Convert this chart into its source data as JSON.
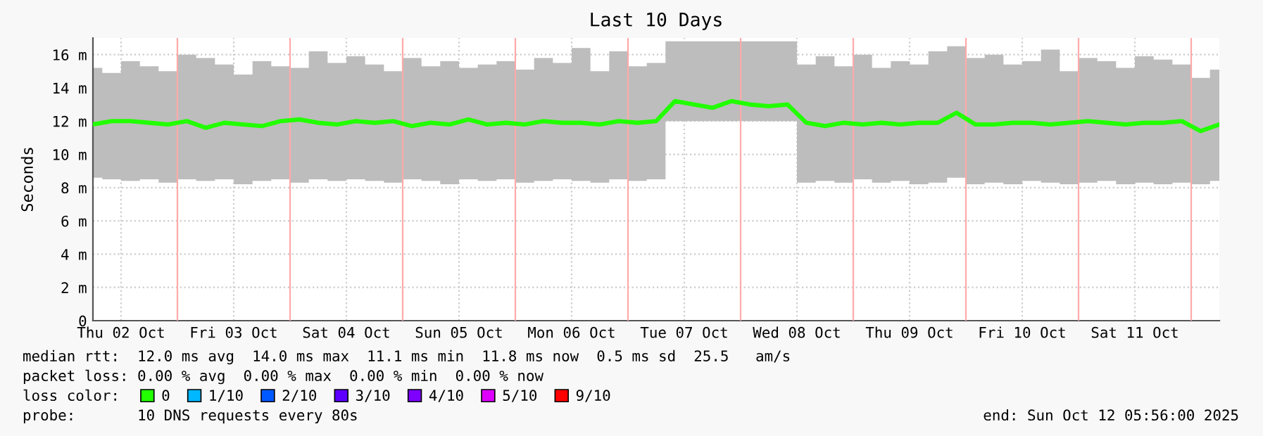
{
  "chart_data": {
    "type": "line",
    "title": "Last 10 Days",
    "ylabel": "Seconds",
    "x": [
      "2025-10-02T06:00",
      "2025-10-02T10:00",
      "2025-10-02T14:00",
      "2025-10-02T18:00",
      "2025-10-02T22:00",
      "2025-10-03T02:00",
      "2025-10-03T06:00",
      "2025-10-03T10:00",
      "2025-10-03T14:00",
      "2025-10-03T18:00",
      "2025-10-03T22:00",
      "2025-10-04T02:00",
      "2025-10-04T06:00",
      "2025-10-04T10:00",
      "2025-10-04T14:00",
      "2025-10-04T18:00",
      "2025-10-04T22:00",
      "2025-10-05T02:00",
      "2025-10-05T06:00",
      "2025-10-05T10:00",
      "2025-10-05T14:00",
      "2025-10-05T18:00",
      "2025-10-05T22:00",
      "2025-10-06T02:00",
      "2025-10-06T06:00",
      "2025-10-06T10:00",
      "2025-10-06T14:00",
      "2025-10-06T18:00",
      "2025-10-06T22:00",
      "2025-10-07T02:00",
      "2025-10-07T06:00",
      "2025-10-07T10:00",
      "2025-10-07T14:00",
      "2025-10-07T18:00",
      "2025-10-07T22:00",
      "2025-10-08T02:00",
      "2025-10-08T06:00",
      "2025-10-08T10:00",
      "2025-10-08T14:00",
      "2025-10-08T18:00",
      "2025-10-08T22:00",
      "2025-10-09T02:00",
      "2025-10-09T06:00",
      "2025-10-09T10:00",
      "2025-10-09T14:00",
      "2025-10-09T18:00",
      "2025-10-09T22:00",
      "2025-10-10T02:00",
      "2025-10-10T06:00",
      "2025-10-10T10:00",
      "2025-10-10T14:00",
      "2025-10-10T18:00",
      "2025-10-10T22:00",
      "2025-10-11T02:00",
      "2025-10-11T06:00",
      "2025-10-11T10:00",
      "2025-10-11T14:00",
      "2025-10-11T18:00",
      "2025-10-11T22:00",
      "2025-10-12T02:00",
      "2025-10-12T06:00"
    ],
    "series": [
      {
        "name": "0",
        "color": "#22ff00",
        "values": [
          11.8,
          12.0,
          12.0,
          11.9,
          11.8,
          12.0,
          11.6,
          11.9,
          11.8,
          11.7,
          12.0,
          12.1,
          11.9,
          11.8,
          12.0,
          11.9,
          12.0,
          11.7,
          11.9,
          11.8,
          12.1,
          11.8,
          11.9,
          11.8,
          12.0,
          11.9,
          11.9,
          11.8,
          12.0,
          11.9,
          12.0,
          13.2,
          13.0,
          12.8,
          13.2,
          13.0,
          12.9,
          13.0,
          11.9,
          11.7,
          11.9,
          11.8,
          11.9,
          11.8,
          11.9,
          11.9,
          12.5,
          11.8,
          11.8,
          11.9,
          11.9,
          11.8,
          11.9,
          12.0,
          11.9,
          11.8,
          11.9,
          11.9,
          12.0,
          11.4,
          11.8
        ],
        "lower": [
          8.6,
          8.5,
          8.4,
          8.5,
          8.3,
          8.5,
          8.4,
          8.5,
          8.2,
          8.4,
          8.5,
          8.3,
          8.5,
          8.4,
          8.5,
          8.4,
          8.3,
          8.5,
          8.4,
          8.2,
          8.5,
          8.4,
          8.5,
          8.3,
          8.4,
          8.5,
          8.4,
          8.3,
          8.5,
          8.4,
          8.5,
          12.0,
          12.0,
          12.0,
          12.0,
          12.0,
          12.0,
          12.0,
          8.3,
          8.4,
          8.3,
          8.5,
          8.3,
          8.4,
          8.2,
          8.3,
          8.6,
          8.2,
          8.3,
          8.2,
          8.4,
          8.3,
          8.2,
          8.3,
          8.4,
          8.2,
          8.3,
          8.2,
          8.3,
          8.2,
          8.4
        ],
        "upper": [
          15.2,
          14.9,
          15.6,
          15.3,
          15.0,
          16.0,
          15.8,
          15.4,
          14.8,
          15.6,
          15.3,
          15.2,
          16.2,
          15.5,
          15.9,
          15.4,
          15.0,
          15.8,
          15.3,
          15.6,
          15.2,
          15.4,
          15.6,
          15.1,
          15.8,
          15.5,
          16.4,
          15.0,
          16.2,
          15.3,
          15.5,
          16.8,
          16.8,
          16.8,
          16.8,
          16.8,
          16.8,
          16.8,
          15.4,
          15.9,
          15.3,
          16.0,
          15.2,
          15.6,
          15.4,
          16.2,
          16.5,
          15.8,
          16.0,
          15.4,
          15.6,
          16.3,
          15.0,
          15.8,
          15.6,
          15.2,
          15.9,
          15.7,
          15.4,
          14.6,
          15.1
        ]
      },
      {
        "name": "1/10",
        "color": "#00b8ff",
        "values": [
          null,
          null,
          null,
          null,
          null,
          null,
          null,
          null,
          null,
          null,
          null,
          null,
          null,
          null,
          null,
          null,
          null,
          null,
          null,
          null,
          null,
          null,
          null,
          null,
          null,
          null,
          null,
          null,
          null,
          null,
          null,
          null,
          null,
          null,
          null,
          null,
          null,
          null,
          null,
          null,
          null,
          null,
          null,
          null,
          null,
          null,
          null,
          null,
          null,
          null,
          null,
          null,
          null,
          null,
          null,
          null,
          null,
          null,
          null,
          null,
          null
        ]
      },
      {
        "name": "2/10",
        "color": "#0059ff",
        "values": [
          null,
          null,
          null,
          null,
          null,
          null,
          null,
          null,
          null,
          null,
          null,
          null,
          null,
          null,
          null,
          null,
          null,
          null,
          null,
          null,
          null,
          null,
          null,
          null,
          null,
          null,
          null,
          null,
          null,
          null,
          null,
          null,
          null,
          null,
          null,
          null,
          null,
          null,
          null,
          null,
          null,
          null,
          null,
          null,
          null,
          null,
          null,
          null,
          null,
          null,
          null,
          null,
          null,
          null,
          null,
          null,
          null,
          null,
          null,
          null,
          null
        ]
      },
      {
        "name": "3/10",
        "color": "#5e00ff",
        "values": [
          null,
          null,
          null,
          null,
          null,
          null,
          null,
          null,
          null,
          null,
          null,
          null,
          null,
          null,
          null,
          null,
          null,
          null,
          null,
          null,
          null,
          null,
          null,
          null,
          null,
          null,
          null,
          null,
          null,
          null,
          null,
          null,
          null,
          null,
          null,
          null,
          null,
          null,
          null,
          null,
          null,
          null,
          null,
          null,
          null,
          null,
          null,
          null,
          null,
          null,
          null,
          null,
          null,
          null,
          null,
          null,
          null,
          null,
          null,
          null,
          null
        ]
      },
      {
        "name": "4/10",
        "color": "#7e00ff",
        "values": [
          null,
          null,
          null,
          null,
          null,
          null,
          null,
          null,
          null,
          null,
          null,
          null,
          null,
          null,
          null,
          null,
          null,
          null,
          null,
          null,
          null,
          null,
          null,
          null,
          null,
          null,
          null,
          null,
          null,
          null,
          null,
          null,
          null,
          null,
          null,
          null,
          null,
          null,
          null,
          null,
          null,
          null,
          null,
          null,
          null,
          null,
          null,
          null,
          null,
          null,
          null,
          null,
          null,
          null,
          null,
          null,
          null,
          null,
          null,
          null,
          null
        ]
      },
      {
        "name": "5/10",
        "color": "#dd00ff",
        "values": [
          null,
          null,
          null,
          null,
          null,
          null,
          null,
          null,
          null,
          null,
          null,
          null,
          null,
          null,
          null,
          null,
          null,
          null,
          null,
          null,
          null,
          null,
          null,
          null,
          null,
          null,
          null,
          null,
          null,
          null,
          null,
          null,
          null,
          null,
          null,
          null,
          null,
          null,
          null,
          null,
          null,
          null,
          null,
          null,
          null,
          null,
          null,
          null,
          null,
          null,
          null,
          null,
          null,
          null,
          null,
          null,
          null,
          null,
          null,
          null,
          null
        ]
      },
      {
        "name": "9/10",
        "color": "#ff0000",
        "values": [
          null,
          null,
          null,
          null,
          null,
          null,
          null,
          null,
          null,
          null,
          null,
          null,
          null,
          null,
          null,
          null,
          null,
          null,
          null,
          null,
          null,
          null,
          null,
          null,
          null,
          null,
          null,
          null,
          null,
          null,
          null,
          null,
          null,
          null,
          null,
          null,
          null,
          null,
          null,
          null,
          null,
          null,
          null,
          null,
          null,
          null,
          null,
          null,
          null,
          null,
          null,
          null,
          null,
          null,
          null,
          null,
          null,
          null,
          null,
          null,
          null
        ]
      }
    ],
    "xlim": [
      "2025-10-02T06:00",
      "2025-10-12T06:00"
    ],
    "xticks": [
      {
        "value": "2025-10-02T12:00",
        "label": "Thu 02 Oct"
      },
      {
        "value": "2025-10-03T12:00",
        "label": "Fri 03 Oct"
      },
      {
        "value": "2025-10-04T12:00",
        "label": "Sat 04 Oct"
      },
      {
        "value": "2025-10-05T12:00",
        "label": "Sun 05 Oct"
      },
      {
        "value": "2025-10-06T12:00",
        "label": "Mon 06 Oct"
      },
      {
        "value": "2025-10-07T12:00",
        "label": "Tue 07 Oct"
      },
      {
        "value": "2025-10-08T12:00",
        "label": "Wed 08 Oct"
      },
      {
        "value": "2025-10-09T12:00",
        "label": "Thu 09 Oct"
      },
      {
        "value": "2025-10-10T12:00",
        "label": "Fri 10 Oct"
      },
      {
        "value": "2025-10-11T12:00",
        "label": "Sat 11 Oct"
      }
    ],
    "ylim": [
      0,
      17
    ],
    "yticks": [
      0,
      {
        "value": 2,
        "label": "2 m"
      },
      {
        "value": 4,
        "label": "4 m"
      },
      {
        "value": 6,
        "label": "6 m"
      },
      {
        "value": 8,
        "label": "8 m"
      },
      {
        "value": 10,
        "label": "10 m"
      },
      {
        "value": 12,
        "label": "12 m"
      },
      {
        "value": 14,
        "label": "14 m"
      },
      {
        "value": 16,
        "label": "16 m"
      }
    ],
    "ref_lines": [
      {
        "axis": "x",
        "value": "2025-10-03T00:00",
        "color": "#ffaaaa",
        "line_style": "solid"
      },
      {
        "axis": "x",
        "value": "2025-10-04T00:00",
        "color": "#ffaaaa",
        "line_style": "solid"
      },
      {
        "axis": "x",
        "value": "2025-10-05T00:00",
        "color": "#ffaaaa",
        "line_style": "solid"
      },
      {
        "axis": "x",
        "value": "2025-10-06T00:00",
        "color": "#ffaaaa",
        "line_style": "solid"
      },
      {
        "axis": "x",
        "value": "2025-10-07T00:00",
        "color": "#ffaaaa",
        "line_style": "solid"
      },
      {
        "axis": "x",
        "value": "2025-10-08T00:00",
        "color": "#ffaaaa",
        "line_style": "solid"
      },
      {
        "axis": "x",
        "value": "2025-10-09T00:00",
        "color": "#ffaaaa",
        "line_style": "solid"
      },
      {
        "axis": "x",
        "value": "2025-10-10T00:00",
        "color": "#ffaaaa",
        "line_style": "solid"
      },
      {
        "axis": "x",
        "value": "2025-10-11T00:00",
        "color": "#ffaaaa",
        "line_style": "solid"
      },
      {
        "axis": "x",
        "value": "2025-10-12T00:00",
        "color": "#ffaaaa",
        "line_style": "solid"
      }
    ],
    "grid": true,
    "legend": "bottom",
    "legend_title": "loss color:",
    "line_style": "solid",
    "marker": "none",
    "annotations": [
      "median rtt:  12.0 ms avg  14.0 ms max  11.1 ms min  11.8 ms now  0.5 ms sd  25.5   am/s",
      "packet loss: 0.00 % avg  0.00 % max  0.00 % min  0.00 % now",
      "probe:       10 DNS requests every 80s",
      "end: Sun Oct 12 05:56:00 2025"
    ]
  }
}
